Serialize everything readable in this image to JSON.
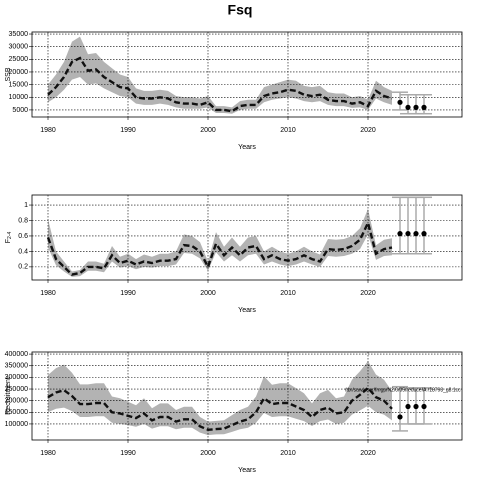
{
  "chart_data": [
    {
      "type": "line",
      "title": "Fsq",
      "y_label": "SSB",
      "x_label": "Years",
      "x": [
        1980,
        1981,
        1982,
        1983,
        1984,
        1985,
        1986,
        1987,
        1988,
        1989,
        1990,
        1991,
        1992,
        1993,
        1994,
        1995,
        1996,
        1997,
        1998,
        1999,
        2000,
        2001,
        2002,
        2003,
        2004,
        2005,
        2006,
        2007,
        2008,
        2009,
        2010,
        2011,
        2012,
        2013,
        2014,
        2015,
        2016,
        2017,
        2018,
        2019,
        2020,
        2021,
        2022,
        2023
      ],
      "values": [
        11000,
        14000,
        18000,
        24000,
        25500,
        20500,
        21000,
        18000,
        16000,
        14000,
        13500,
        10000,
        9500,
        9500,
        10000,
        9500,
        8000,
        7500,
        7500,
        7000,
        8000,
        5000,
        5000,
        4500,
        6500,
        7000,
        7000,
        10500,
        11500,
        12000,
        13000,
        12500,
        11000,
        10500,
        11000,
        9000,
        8500,
        8500,
        7500,
        8000,
        6500,
        12500,
        10500,
        9500
      ],
      "lower": [
        8000,
        10000,
        13000,
        17000,
        18000,
        15000,
        15500,
        13500,
        12000,
        10500,
        10000,
        7500,
        7000,
        7000,
        7500,
        7000,
        6000,
        5500,
        5500,
        5500,
        6000,
        3800,
        3800,
        3500,
        5000,
        5500,
        5500,
        8000,
        9000,
        9500,
        10000,
        9500,
        8500,
        8000,
        8500,
        7000,
        6500,
        6500,
        5800,
        6000,
        5000,
        9500,
        8000,
        7000
      ],
      "upper": [
        15000,
        19000,
        24000,
        32000,
        34000,
        27000,
        27500,
        24000,
        21500,
        19000,
        18000,
        13500,
        12500,
        12500,
        13000,
        12500,
        10500,
        10000,
        10000,
        9500,
        10500,
        6500,
        6500,
        6000,
        8500,
        9000,
        9000,
        14000,
        15000,
        16000,
        17000,
        16500,
        14500,
        14000,
        14500,
        12000,
        11500,
        11500,
        10000,
        10500,
        9000,
        16500,
        14000,
        12500
      ],
      "projection": {
        "x": [
          2024,
          2025,
          2026,
          2027
        ],
        "values": [
          8000,
          6000,
          6000,
          6000
        ],
        "lower": [
          5000,
          3500,
          3500,
          3500
        ],
        "upper": [
          12000,
          11000,
          11000,
          11000
        ]
      },
      "xlim": [
        1978,
        2031.75
      ],
      "ylim": [
        2200,
        35800
      ],
      "xticks": [
        1980,
        1990,
        2000,
        2010,
        2020
      ],
      "yticks": [
        5000,
        10000,
        15000,
        20000,
        25000,
        30000,
        35000
      ],
      "grid": true
    },
    {
      "type": "line",
      "y_label": "F",
      "y_label_sub": "2-4",
      "x_label": "Years",
      "x": [
        1980,
        1981,
        1982,
        1983,
        1984,
        1985,
        1986,
        1987,
        1988,
        1989,
        1990,
        1991,
        1992,
        1993,
        1994,
        1995,
        1996,
        1997,
        1998,
        1999,
        2000,
        2001,
        2002,
        2003,
        2004,
        2005,
        2006,
        2007,
        2008,
        2009,
        2010,
        2011,
        2012,
        2013,
        2014,
        2015,
        2016,
        2017,
        2018,
        2019,
        2020,
        2021,
        2022,
        2023
      ],
      "values": [
        0.58,
        0.3,
        0.2,
        0.1,
        0.12,
        0.2,
        0.2,
        0.18,
        0.35,
        0.25,
        0.28,
        0.23,
        0.27,
        0.25,
        0.28,
        0.28,
        0.3,
        0.48,
        0.47,
        0.4,
        0.2,
        0.5,
        0.35,
        0.45,
        0.35,
        0.45,
        0.47,
        0.3,
        0.35,
        0.3,
        0.28,
        0.3,
        0.35,
        0.3,
        0.27,
        0.43,
        0.42,
        0.43,
        0.47,
        0.55,
        0.77,
        0.37,
        0.43,
        0.45
      ],
      "lower": [
        0.45,
        0.22,
        0.14,
        0.07,
        0.08,
        0.15,
        0.15,
        0.13,
        0.27,
        0.19,
        0.21,
        0.17,
        0.2,
        0.19,
        0.21,
        0.21,
        0.23,
        0.38,
        0.37,
        0.31,
        0.15,
        0.39,
        0.27,
        0.35,
        0.27,
        0.35,
        0.37,
        0.23,
        0.27,
        0.23,
        0.21,
        0.23,
        0.27,
        0.23,
        0.2,
        0.34,
        0.33,
        0.34,
        0.37,
        0.43,
        0.62,
        0.29,
        0.34,
        0.35
      ],
      "upper": [
        0.82,
        0.4,
        0.27,
        0.14,
        0.16,
        0.27,
        0.27,
        0.24,
        0.47,
        0.33,
        0.37,
        0.3,
        0.36,
        0.33,
        0.37,
        0.37,
        0.4,
        0.62,
        0.6,
        0.52,
        0.27,
        0.65,
        0.46,
        0.58,
        0.46,
        0.58,
        0.6,
        0.4,
        0.46,
        0.4,
        0.37,
        0.4,
        0.46,
        0.4,
        0.36,
        0.56,
        0.55,
        0.56,
        0.6,
        0.7,
        0.95,
        0.48,
        0.55,
        0.57
      ],
      "projection": {
        "x": [
          2024,
          2025,
          2026,
          2027
        ],
        "values": [
          0.63,
          0.63,
          0.63,
          0.63
        ],
        "lower": [
          0.37,
          0.37,
          0.37,
          0.37
        ],
        "upper": [
          1.1,
          1.1,
          1.1,
          1.1
        ]
      },
      "xlim": [
        1978,
        2031.75
      ],
      "ylim": [
        0.03,
        1.13
      ],
      "xticks": [
        1980,
        1990,
        2000,
        2010,
        2020
      ],
      "yticks": [
        0.2,
        0.4,
        0.6,
        0.8,
        1.0
      ],
      "grid": true
    },
    {
      "type": "line",
      "y_label": "Recruitment",
      "x_label": "Years",
      "annotation": "/tbr/saw/user/fmgp/N2/0/05/reduce/A r18793_g8.1cc",
      "x": [
        1980,
        1981,
        1982,
        1983,
        1984,
        1985,
        1986,
        1987,
        1988,
        1989,
        1990,
        1991,
        1992,
        1993,
        1994,
        1995,
        1996,
        1997,
        1998,
        1999,
        2000,
        2001,
        2002,
        2003,
        2004,
        2005,
        2006,
        2007,
        2008,
        2009,
        2010,
        2011,
        2012,
        2013,
        2014,
        2015,
        2016,
        2017,
        2018,
        2019,
        2020,
        2021,
        2022,
        2023
      ],
      "values": [
        215000,
        235000,
        245000,
        220000,
        185000,
        185000,
        190000,
        190000,
        150000,
        145000,
        135000,
        125000,
        145000,
        115000,
        130000,
        130000,
        110000,
        120000,
        120000,
        90000,
        75000,
        78000,
        80000,
        95000,
        110000,
        120000,
        150000,
        210000,
        185000,
        190000,
        190000,
        175000,
        160000,
        130000,
        160000,
        170000,
        145000,
        150000,
        200000,
        225000,
        255000,
        215000,
        200000,
        165000
      ],
      "lower": [
        150000,
        165000,
        170000,
        155000,
        130000,
        130000,
        133000,
        133000,
        105000,
        100000,
        95000,
        88000,
        100000,
        80000,
        90000,
        90000,
        77000,
        84000,
        84000,
        63000,
        52000,
        55000,
        56000,
        66000,
        77000,
        84000,
        105000,
        147000,
        130000,
        133000,
        133000,
        122000,
        112000,
        91000,
        112000,
        119000,
        100000,
        105000,
        140000,
        158000,
        178000,
        150000,
        140000,
        115000
      ],
      "upper": [
        310000,
        340000,
        355000,
        320000,
        270000,
        270000,
        275000,
        275000,
        218000,
        210000,
        195000,
        180000,
        210000,
        167000,
        188000,
        188000,
        160000,
        174000,
        174000,
        130000,
        110000,
        113000,
        116000,
        138000,
        160000,
        174000,
        218000,
        305000,
        268000,
        275000,
        275000,
        254000,
        232000,
        188000,
        232000,
        246000,
        210000,
        218000,
        290000,
        326000,
        370000,
        312000,
        290000,
        240000
      ],
      "projection": {
        "x": [
          2024,
          2025,
          2026,
          2027
        ],
        "values": [
          130000,
          175000,
          175000,
          175000
        ],
        "lower": [
          70000,
          100000,
          100000,
          100000
        ],
        "upper": [
          260000,
          255000,
          255000,
          255000
        ]
      },
      "xlim": [
        1978,
        2031.75
      ],
      "ylim": [
        31000,
        409000
      ],
      "xticks": [
        1980,
        1990,
        2000,
        2010,
        2020
      ],
      "yticks": [
        100000,
        150000,
        200000,
        250000,
        300000,
        350000,
        400000
      ],
      "grid": true
    }
  ]
}
